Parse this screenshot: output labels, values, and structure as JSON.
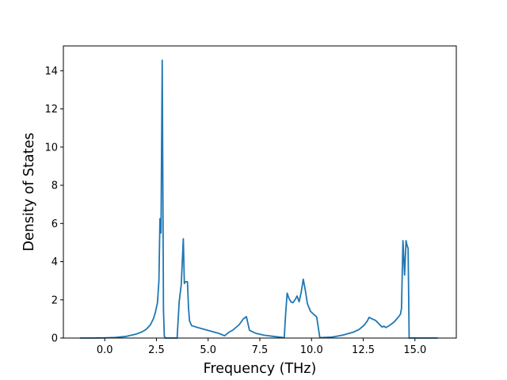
{
  "chart_data": {
    "type": "line",
    "title": "",
    "xlabel": "Frequency (THz)",
    "ylabel": "Density of States",
    "xlim": [
      -2.0,
      17.0
    ],
    "ylim": [
      0,
      15.3
    ],
    "grid": false,
    "line_color": "#1f77b4",
    "xticks": [
      {
        "value": 0.0,
        "label": "0.0"
      },
      {
        "value": 2.5,
        "label": "2.5"
      },
      {
        "value": 5.0,
        "label": "5.0"
      },
      {
        "value": 7.5,
        "label": "7.5"
      },
      {
        "value": 10.0,
        "label": "10.0"
      },
      {
        "value": 12.5,
        "label": "12.5"
      },
      {
        "value": 15.0,
        "label": "15.0"
      }
    ],
    "yticks": [
      {
        "value": 0,
        "label": "0"
      },
      {
        "value": 2,
        "label": "2"
      },
      {
        "value": 4,
        "label": "4"
      },
      {
        "value": 6,
        "label": "6"
      },
      {
        "value": 8,
        "label": "8"
      },
      {
        "value": 10,
        "label": "10"
      },
      {
        "value": 12,
        "label": "12"
      },
      {
        "value": 14,
        "label": "14"
      }
    ],
    "series": [
      {
        "x": [
          -1.2,
          -0.5,
          0.0,
          0.5,
          1.0,
          1.5,
          1.8,
          2.0,
          2.2,
          2.35,
          2.45,
          2.55,
          2.62,
          2.67,
          2.72,
          2.78,
          2.84,
          2.88,
          2.93,
          3.0,
          3.1,
          3.5,
          3.6,
          3.7,
          3.8,
          3.85,
          3.9,
          4.0,
          4.05,
          4.1,
          4.2,
          4.5,
          5.0,
          5.5,
          5.8,
          6.0,
          6.2,
          6.5,
          6.7,
          6.85,
          7.0,
          7.3,
          7.7,
          8.2,
          8.68,
          8.75,
          8.82,
          8.9,
          9.0,
          9.1,
          9.2,
          9.3,
          9.4,
          9.5,
          9.6,
          9.7,
          9.8,
          9.95,
          10.1,
          10.25,
          10.32,
          10.4,
          11.0,
          11.5,
          12.0,
          12.3,
          12.55,
          12.7,
          12.78,
          12.9,
          13.1,
          13.3,
          13.4,
          13.5,
          13.6,
          13.8,
          14.0,
          14.2,
          14.3,
          14.35,
          14.42,
          14.5,
          14.57,
          14.62,
          14.67,
          14.72,
          15.0,
          15.5,
          16.1
        ],
        "y": [
          0,
          0,
          0.01,
          0.03,
          0.08,
          0.2,
          0.32,
          0.45,
          0.68,
          1.0,
          1.35,
          1.85,
          3.0,
          6.25,
          5.5,
          14.55,
          1.5,
          0.1,
          0,
          0,
          0,
          0,
          1.9,
          2.8,
          5.2,
          2.85,
          2.95,
          2.95,
          1.6,
          0.9,
          0.65,
          0.55,
          0.4,
          0.25,
          0.12,
          0.3,
          0.42,
          0.7,
          1.0,
          1.12,
          0.4,
          0.25,
          0.15,
          0.08,
          0.02,
          1.3,
          2.35,
          2.1,
          1.9,
          1.85,
          2.0,
          2.2,
          1.9,
          2.4,
          3.08,
          2.5,
          1.8,
          1.4,
          1.25,
          1.1,
          0.6,
          0.02,
          0.05,
          0.15,
          0.3,
          0.45,
          0.68,
          0.9,
          1.08,
          1.02,
          0.92,
          0.7,
          0.58,
          0.62,
          0.55,
          0.68,
          0.85,
          1.1,
          1.25,
          1.55,
          5.1,
          3.3,
          5.1,
          4.85,
          4.7,
          0,
          0,
          0,
          0
        ]
      }
    ]
  }
}
